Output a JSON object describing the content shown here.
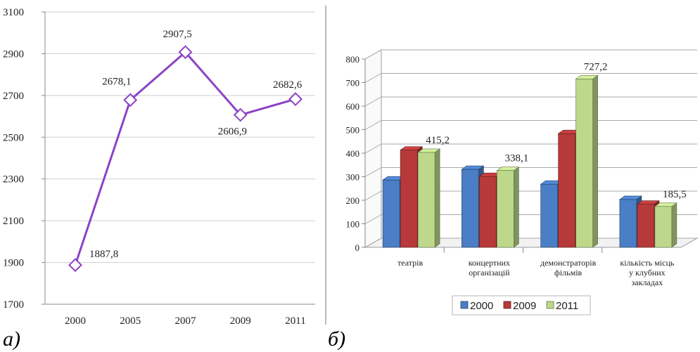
{
  "panel_labels": [
    "а)",
    "б)"
  ],
  "colors": {
    "line": "#8b43c6",
    "marker_fill": "#ffffff",
    "s2000": "#4a7ec6",
    "s2009": "#b8393a",
    "s2011": "#bdd88b"
  },
  "chart_data": [
    {
      "type": "line",
      "title": "",
      "xlabel": "",
      "ylabel": "",
      "x": [
        "2000",
        "2005",
        "2007",
        "2009",
        "2011"
      ],
      "y": [
        1887.8,
        2678.1,
        2907.5,
        2606.9,
        2682.6
      ],
      "data_labels": [
        "1887,8",
        "2678,1",
        "2907,5",
        "2606,9",
        "2682,6"
      ],
      "y_ticks": [
        "1700",
        "1900",
        "2100",
        "2300",
        "2500",
        "2700",
        "2900",
        "3100"
      ],
      "ylim": [
        1700,
        3100
      ],
      "grid": true,
      "marker": "diamond-open"
    },
    {
      "type": "bar",
      "title": "",
      "xlabel": "",
      "ylabel": "",
      "categories": [
        [
          "театрів"
        ],
        [
          "концертних",
          "організацій"
        ],
        [
          "демонстраторів",
          "фільмів"
        ],
        [
          "кількість місць",
          "у клубних",
          "закладах"
        ]
      ],
      "series": [
        {
          "name": "2000",
          "values": [
            298,
            343,
            280,
            215
          ]
        },
        {
          "name": "2009",
          "values": [
            425,
            313,
            495,
            195
          ]
        },
        {
          "name": "2011",
          "values": [
            415.2,
            338.1,
            727.2,
            185.5
          ]
        }
      ],
      "data_labels": {
        "2011": [
          "415,2",
          "338,1",
          "727,2",
          "185,5"
        ]
      },
      "y_ticks": [
        "0",
        "100",
        "200",
        "300",
        "400",
        "500",
        "600",
        "700",
        "800"
      ],
      "ylim": [
        0,
        800
      ],
      "grid": true,
      "legend_position": "bottom",
      "style": "3d"
    }
  ]
}
